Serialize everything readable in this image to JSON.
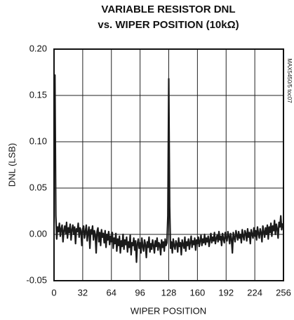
{
  "chart_data": {
    "type": "line",
    "title": [
      "VARIABLE RESISTOR DNL",
      "vs. WIPER POSITION (10kΩ)"
    ],
    "xlabel": "WIPER POSITION",
    "ylabel": "DNL (LSB)",
    "annotation": "MAX5450/5 toc07",
    "xlim": [
      0,
      256
    ],
    "xticks": [
      0,
      32,
      64,
      96,
      128,
      160,
      192,
      224,
      256
    ],
    "ylim": [
      -0.05,
      0.2
    ],
    "yticks": [
      -0.05,
      {
        "value": 0,
        "label": "0.00"
      },
      0.05,
      {
        "value": 0.1,
        "label": "0.10"
      },
      0.15,
      {
        "value": 0.2,
        "label": "0.20"
      }
    ],
    "grid": true,
    "series": [
      {
        "color": "#1a1a1a",
        "x": [
          0,
          1,
          2,
          3,
          4,
          5,
          6,
          7,
          8,
          9,
          10,
          11,
          12,
          13,
          14,
          15,
          16,
          17,
          18,
          19,
          20,
          21,
          22,
          23,
          24,
          25,
          26,
          27,
          28,
          29,
          30,
          31,
          32,
          33,
          34,
          35,
          36,
          37,
          38,
          39,
          40,
          41,
          42,
          43,
          44,
          45,
          46,
          47,
          48,
          49,
          50,
          51,
          52,
          53,
          54,
          55,
          56,
          57,
          58,
          59,
          60,
          61,
          62,
          63,
          64,
          65,
          66,
          67,
          68,
          69,
          70,
          71,
          72,
          73,
          74,
          75,
          76,
          77,
          78,
          79,
          80,
          81,
          82,
          83,
          84,
          85,
          86,
          87,
          88,
          89,
          90,
          91,
          92,
          93,
          94,
          95,
          96,
          97,
          98,
          99,
          100,
          101,
          102,
          103,
          104,
          105,
          106,
          107,
          108,
          109,
          110,
          111,
          112,
          113,
          114,
          115,
          116,
          117,
          118,
          119,
          120,
          121,
          122,
          123,
          124,
          125,
          126,
          127,
          128,
          129,
          130,
          131,
          132,
          133,
          134,
          135,
          136,
          137,
          138,
          139,
          140,
          141,
          142,
          143,
          144,
          145,
          146,
          147,
          148,
          149,
          150,
          151,
          152,
          153,
          154,
          155,
          156,
          157,
          158,
          159,
          160,
          161,
          162,
          163,
          164,
          165,
          166,
          167,
          168,
          169,
          170,
          171,
          172,
          173,
          174,
          175,
          176,
          177,
          178,
          179,
          180,
          181,
          182,
          183,
          184,
          185,
          186,
          187,
          188,
          189,
          190,
          191,
          192,
          193,
          194,
          195,
          196,
          197,
          198,
          199,
          200,
          201,
          202,
          203,
          204,
          205,
          206,
          207,
          208,
          209,
          210,
          211,
          212,
          213,
          214,
          215,
          216,
          217,
          218,
          219,
          220,
          221,
          222,
          223,
          224,
          225,
          226,
          227,
          228,
          229,
          230,
          231,
          232,
          233,
          234,
          235,
          236,
          237,
          238,
          239,
          240,
          241,
          242,
          243,
          244,
          245,
          246,
          247,
          248,
          249,
          250,
          251,
          252,
          253,
          254,
          255
        ],
        "values": [
          0.17,
          0.172,
          0.02,
          -0.005,
          0.008,
          0.003,
          0.012,
          -0.002,
          0.006,
          0.01,
          -0.008,
          0.004,
          0.009,
          0.001,
          0.013,
          -0.004,
          0.007,
          0.002,
          0.011,
          -0.006,
          0.005,
          0.01,
          0.0,
          0.008,
          -0.01,
          0.006,
          0.003,
          0.012,
          -0.003,
          0.007,
          0.004,
          -0.012,
          0.006,
          0.009,
          -0.004,
          0.003,
          0.01,
          -0.007,
          0.002,
          0.008,
          -0.015,
          0.005,
          0.001,
          0.009,
          -0.006,
          0.004,
          0.0,
          -0.02,
          0.003,
          0.007,
          -0.008,
          0.002,
          -0.012,
          0.005,
          -0.003,
          0.001,
          -0.009,
          0.004,
          -0.014,
          0.0,
          -0.006,
          0.003,
          -0.011,
          -0.002,
          -0.008,
          0.002,
          -0.015,
          -0.004,
          -0.01,
          0.001,
          -0.018,
          -0.005,
          -0.012,
          -0.002,
          -0.02,
          -0.007,
          -0.013,
          0.0,
          -0.016,
          -0.006,
          -0.011,
          -0.003,
          -0.019,
          -0.008,
          -0.014,
          -0.001,
          -0.022,
          -0.009,
          -0.012,
          -0.004,
          -0.017,
          -0.007,
          -0.03,
          -0.01,
          -0.005,
          -0.015,
          -0.009,
          -0.02,
          -0.004,
          -0.013,
          -0.018,
          -0.006,
          -0.011,
          -0.025,
          -0.008,
          -0.014,
          -0.003,
          -0.019,
          -0.01,
          -0.016,
          -0.006,
          -0.012,
          -0.02,
          -0.007,
          -0.013,
          -0.004,
          -0.017,
          -0.009,
          -0.011,
          -0.022,
          -0.006,
          -0.014,
          -0.008,
          -0.018,
          -0.005,
          -0.012,
          -0.009,
          0.02,
          0.168,
          0.03,
          -0.015,
          -0.008,
          -0.02,
          -0.005,
          -0.012,
          -0.016,
          -0.007,
          -0.01,
          -0.019,
          -0.004,
          -0.013,
          -0.009,
          -0.022,
          -0.006,
          -0.011,
          -0.015,
          -0.003,
          -0.018,
          -0.008,
          -0.012,
          -0.005,
          -0.016,
          -0.009,
          -0.002,
          -0.014,
          -0.007,
          -0.011,
          -0.004,
          -0.017,
          -0.006,
          -0.01,
          -0.003,
          -0.013,
          -0.007,
          -0.001,
          -0.012,
          -0.005,
          -0.009,
          0.0,
          -0.011,
          -0.004,
          -0.008,
          -0.002,
          -0.013,
          -0.006,
          0.001,
          -0.009,
          -0.003,
          -0.007,
          0.002,
          -0.01,
          -0.004,
          -0.001,
          -0.008,
          0.003,
          -0.006,
          -0.002,
          -0.012,
          0.001,
          -0.005,
          -0.009,
          0.002,
          -0.004,
          -0.007,
          0.003,
          -0.002,
          -0.01,
          0.001,
          -0.005,
          -0.02,
          0.002,
          -0.003,
          -0.008,
          0.004,
          -0.001,
          -0.006,
          0.003,
          -0.004,
          0.0,
          -0.009,
          0.005,
          -0.002,
          -0.006,
          0.004,
          0.001,
          -0.007,
          0.006,
          -0.003,
          0.002,
          -0.01,
          0.005,
          0.0,
          -0.004,
          0.007,
          -0.002,
          0.004,
          -0.006,
          0.008,
          0.001,
          -0.004,
          0.006,
          0.002,
          -0.008,
          0.009,
          0.003,
          -0.003,
          0.007,
          0.0,
          0.01,
          -0.005,
          0.008,
          0.002,
          0.012,
          -0.002,
          0.009,
          0.004,
          0.015,
          0.0,
          0.011,
          0.006,
          -0.004,
          0.013,
          0.008,
          0.02,
          0.005,
          0.012
        ]
      }
    ]
  }
}
